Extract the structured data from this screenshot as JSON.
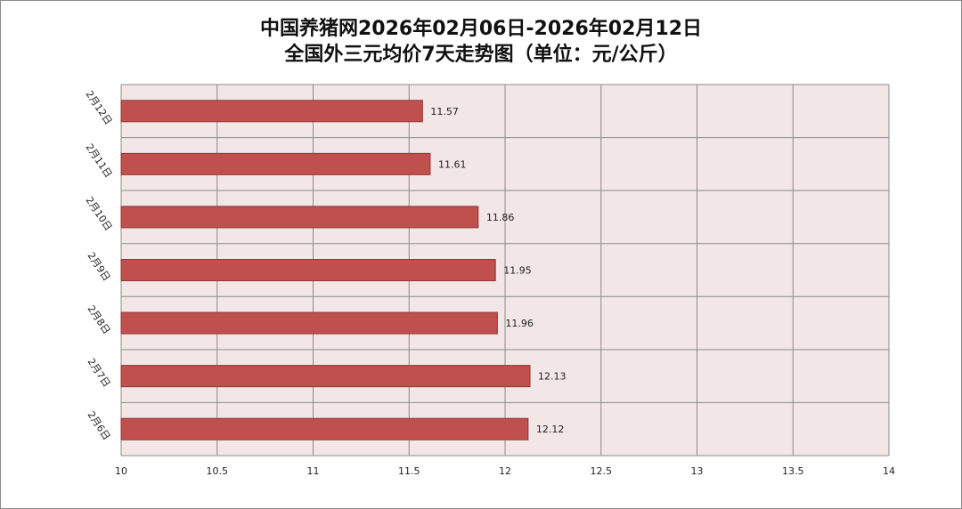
{
  "chart_data": {
    "type": "bar",
    "orientation": "horizontal",
    "title_line1": "中国养猪网2026年02月06日-2026年02月12日",
    "title_line2": "全国外三元均价7天走势图（单位：元/公斤）",
    "categories": [
      "2月12日",
      "2月11日",
      "2月10日",
      "2月9日",
      "2月8日",
      "2月7日",
      "2月6日"
    ],
    "values": [
      11.57,
      11.61,
      11.86,
      11.95,
      11.96,
      12.13,
      12.12
    ],
    "value_labels": [
      "11.57",
      "11.61",
      "11.86",
      "11.95",
      "11.96",
      "12.13",
      "12.12"
    ],
    "xlim": [
      10,
      14
    ],
    "xticks": [
      "10",
      "10.5",
      "11",
      "11.5",
      "12",
      "12.5",
      "13",
      "13.5",
      "14"
    ],
    "xtick_values": [
      10,
      10.5,
      11,
      11.5,
      12,
      12.5,
      13,
      13.5,
      14
    ],
    "grid": true,
    "colors": {
      "bar_fill": "#c0504d",
      "bar_stroke": "#8c3836",
      "plot_background": "#f2e6e6",
      "grid": "#8c8c8c"
    }
  }
}
